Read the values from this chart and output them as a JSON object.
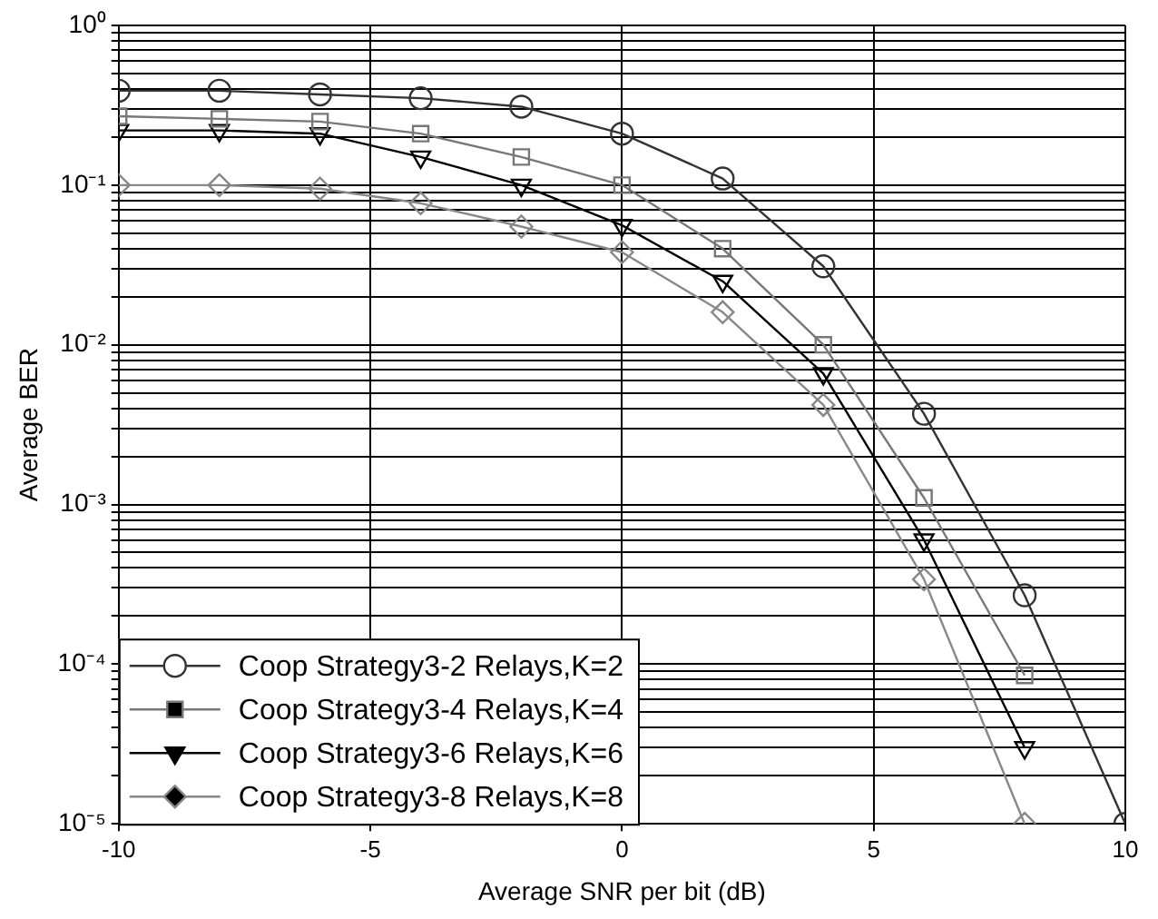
{
  "chart_data": {
    "type": "line",
    "xlabel": "Average SNR per bit (dB)",
    "ylabel": "Average BER",
    "x": [
      -10,
      -8,
      -6,
      -4,
      -2,
      0,
      2,
      4,
      6,
      8,
      10
    ],
    "series": [
      {
        "name": "Coop Strategy3-2 Relays,K=2",
        "color": "#333333",
        "marker": "circle",
        "values": [
          0.39,
          0.39,
          0.37,
          0.35,
          0.31,
          0.21,
          0.11,
          0.031,
          0.0037,
          0.00027,
          1e-05
        ]
      },
      {
        "name": "Coop Strategy3-4 Relays,K=4",
        "color": "#777777",
        "marker": "square",
        "values": [
          0.27,
          0.26,
          0.25,
          0.21,
          0.15,
          0.1,
          0.04,
          0.01,
          0.0011,
          8.5e-05,
          null
        ]
      },
      {
        "name": "Coop Strategy3-6 Relays,K=6",
        "color": "#000000",
        "marker": "triangle",
        "values": [
          0.22,
          0.22,
          0.21,
          0.15,
          0.1,
          0.056,
          0.025,
          0.0066,
          0.0006,
          3e-05,
          null
        ]
      },
      {
        "name": "Coop Strategy3-8 Relays,K=8",
        "color": "#888888",
        "marker": "diamond",
        "values": [
          0.1,
          0.1,
          0.095,
          0.077,
          0.055,
          0.038,
          0.016,
          0.0042,
          0.00034,
          1e-05,
          null
        ]
      }
    ],
    "log": "y",
    "grid": true,
    "legend": "bottom left",
    "line_style": "solid",
    "xlim": [
      -10,
      10
    ],
    "xticks": [
      -10,
      -5,
      0,
      5,
      10
    ],
    "ylim": [
      1e-05,
      1
    ],
    "yticks": [
      {
        "value": 1e-05,
        "label": "10⁻⁵"
      },
      {
        "value": 2e-05,
        "label": null
      },
      {
        "value": 3e-05,
        "label": null
      },
      {
        "value": 4e-05,
        "label": null
      },
      {
        "value": 5e-05,
        "label": null
      },
      {
        "value": 6e-05,
        "label": null
      },
      {
        "value": 7e-05,
        "label": null
      },
      {
        "value": 8e-05,
        "label": null
      },
      {
        "value": 9e-05,
        "label": null
      },
      {
        "value": 0.0001,
        "label": "10⁻⁴"
      },
      {
        "value": 0.0002,
        "label": null
      },
      {
        "value": 0.0003,
        "label": null
      },
      {
        "value": 0.0004,
        "label": null
      },
      {
        "value": 0.0005,
        "label": null
      },
      {
        "value": 0.0006,
        "label": null
      },
      {
        "value": 0.0007,
        "label": null
      },
      {
        "value": 0.0008,
        "label": null
      },
      {
        "value": 0.0009,
        "label": null
      },
      {
        "value": 0.001,
        "label": "10⁻³"
      },
      {
        "value": 0.002,
        "label": null
      },
      {
        "value": 0.003,
        "label": null
      },
      {
        "value": 0.004,
        "label": null
      },
      {
        "value": 0.005,
        "label": null
      },
      {
        "value": 0.006,
        "label": null
      },
      {
        "value": 0.007,
        "label": null
      },
      {
        "value": 0.008,
        "label": null
      },
      {
        "value": 0.009,
        "label": null
      },
      {
        "value": 0.01,
        "label": "10⁻²"
      },
      {
        "value": 0.02,
        "label": null
      },
      {
        "value": 0.03,
        "label": null
      },
      {
        "value": 0.04,
        "label": null
      },
      {
        "value": 0.05,
        "label": null
      },
      {
        "value": 0.06,
        "label": null
      },
      {
        "value": 0.07,
        "label": null
      },
      {
        "value": 0.08,
        "label": null
      },
      {
        "value": 0.09,
        "label": null
      },
      {
        "value": 0.1,
        "label": "10⁻¹"
      },
      {
        "value": 0.2,
        "label": null
      },
      {
        "value": 0.3,
        "label": null
      },
      {
        "value": 0.4,
        "label": null
      },
      {
        "value": 0.5,
        "label": null
      },
      {
        "value": 0.6,
        "label": null
      },
      {
        "value": 0.7,
        "label": null
      },
      {
        "value": 0.8,
        "label": null
      },
      {
        "value": 0.9,
        "label": null
      },
      {
        "value": 1,
        "label": "10⁰"
      }
    ]
  }
}
